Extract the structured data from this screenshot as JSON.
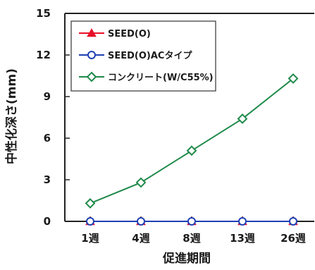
{
  "chart_data": {
    "type": "line",
    "title": "",
    "xlabel": "促進期間",
    "ylabel": "中性化深さ(mm)",
    "categories": [
      "1週",
      "4週",
      "8週",
      "13週",
      "26週"
    ],
    "ylim": [
      0,
      15
    ],
    "yticks": [
      "0",
      "3",
      "6",
      "9",
      "12",
      "15"
    ],
    "grid": false,
    "legend_position": "top-left",
    "series": [
      {
        "name": "SEED(O)",
        "values": [
          0,
          0,
          0,
          0,
          0
        ],
        "color": "#e8102a",
        "marker": "filled-triangle"
      },
      {
        "name": "SEED(O)ACタイプ",
        "values": [
          0,
          0,
          0,
          0,
          0
        ],
        "color": "#1e3fb4",
        "marker": "open-circle"
      },
      {
        "name": "コンクリート(W/C55%)",
        "values": [
          1.3,
          2.8,
          5.1,
          7.4,
          10.3
        ],
        "color": "#1f8a4a",
        "marker": "open-diamond"
      }
    ]
  }
}
